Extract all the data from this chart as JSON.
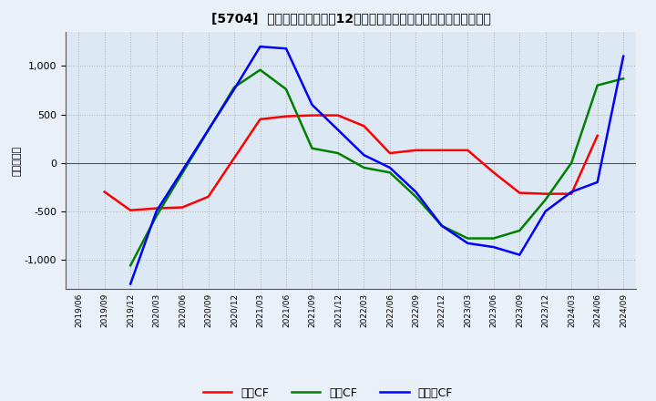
{
  "title": "[5704]  キャッシュフローの12か月移動合計の対前年同期増減額の推移",
  "ylabel": "（百万円）",
  "legend_labels": [
    "営業CF",
    "投賄CF",
    "フリーCF"
  ],
  "colors": [
    "#ff0000",
    "#008000",
    "#0000ff"
  ],
  "x_labels": [
    "2019/06",
    "2019/09",
    "2019/12",
    "2020/03",
    "2020/06",
    "2020/09",
    "2020/12",
    "2021/03",
    "2021/06",
    "2021/09",
    "2021/12",
    "2022/03",
    "2022/06",
    "2022/09",
    "2022/12",
    "2023/03",
    "2023/06",
    "2023/09",
    "2023/12",
    "2024/03",
    "2024/06",
    "2024/09"
  ],
  "operating_cf": [
    null,
    -300,
    -490,
    -470,
    -460,
    -350,
    null,
    450,
    480,
    490,
    490,
    380,
    100,
    130,
    130,
    130,
    -100,
    -310,
    -320,
    -320,
    280,
    null
  ],
  "investing_cf": [
    null,
    null,
    -1060,
    -550,
    null,
    null,
    780,
    960,
    760,
    150,
    100,
    -50,
    -100,
    -350,
    -650,
    -780,
    -780,
    -700,
    -380,
    0,
    800,
    870
  ],
  "free_cf": [
    null,
    null,
    -1250,
    -500,
    null,
    null,
    760,
    1200,
    1180,
    600,
    null,
    80,
    -50,
    -300,
    -650,
    -830,
    -870,
    -950,
    -500,
    -300,
    -200,
    1100
  ],
  "ylim": [
    -1300,
    1350
  ],
  "yticks": [
    -1000,
    -500,
    0,
    500,
    1000
  ],
  "background_color": "#eaf0f8",
  "plot_bg_color": "#dde8f5",
  "grid_color": "#aaaaaa",
  "zero_line_color": "#555555"
}
